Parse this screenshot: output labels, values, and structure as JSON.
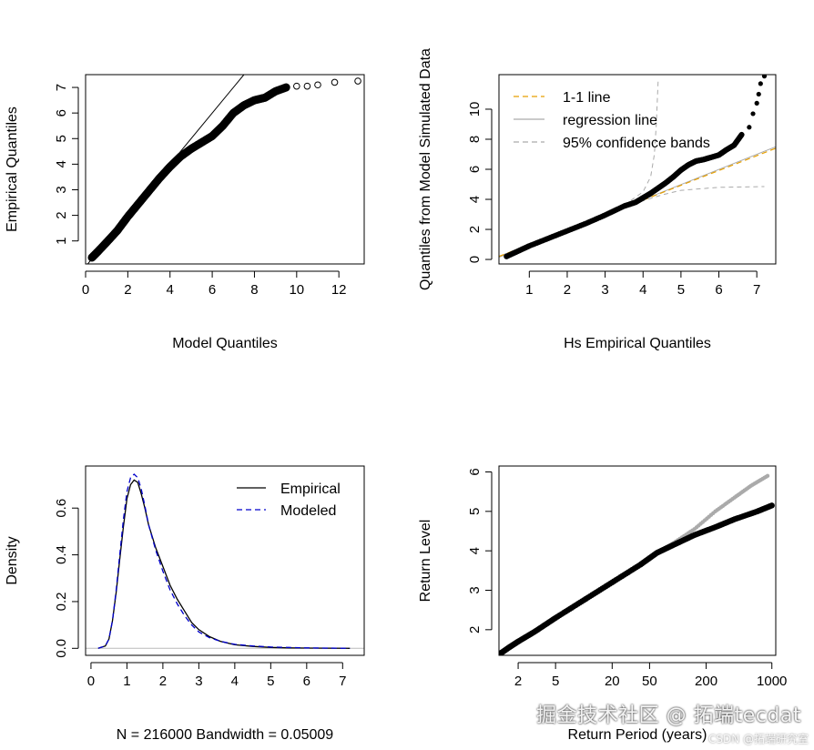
{
  "watermark": {
    "main": "掘金技术社区 @ 拓端tecdat",
    "sub": "CSDN @拓端研究室"
  },
  "chart_data": [
    {
      "type": "scatter",
      "xlabel": "Model Quantiles",
      "ylabel": "Empirical Quantiles",
      "xlim": [
        0,
        13.2
      ],
      "ylim": [
        0.1,
        7.5
      ],
      "xticks": [
        0,
        2,
        4,
        6,
        8,
        10,
        12
      ],
      "yticks": [
        1,
        2,
        3,
        4,
        5,
        6,
        7
      ],
      "grid": false,
      "reference_line": {
        "x": [
          0,
          7.5
        ],
        "y": [
          0,
          7.5
        ]
      },
      "series": [
        {
          "x": [
            0.3,
            0.6,
            1.0,
            1.5,
            2.0,
            2.5,
            3.0,
            3.5,
            4.0,
            4.5,
            5.0,
            5.5,
            6.0,
            6.5,
            7.0,
            7.5,
            8.0,
            8.5,
            9.0,
            9.5,
            10.0,
            10.5,
            11.0,
            11.8,
            12.9
          ],
          "y": [
            0.35,
            0.6,
            0.95,
            1.4,
            1.95,
            2.45,
            2.95,
            3.45,
            3.9,
            4.3,
            4.6,
            4.85,
            5.1,
            5.5,
            6.0,
            6.3,
            6.5,
            6.6,
            6.85,
            7.0,
            7.05,
            7.05,
            7.1,
            7.2,
            7.25
          ]
        }
      ]
    },
    {
      "type": "scatter",
      "xlabel": "Hs Empirical Quantiles",
      "ylabel": "Quantiles from Model Simulated Data",
      "xlim": [
        0.2,
        7.5
      ],
      "ylim": [
        -0.3,
        12.3
      ],
      "xticks": [
        1,
        2,
        3,
        4,
        5,
        6,
        7
      ],
      "yticks": [
        0,
        2,
        4,
        6,
        8,
        10
      ],
      "grid": false,
      "legend": {
        "position": "top-left",
        "entries": [
          {
            "label": "1-1 line",
            "color": "#e69f00",
            "style": "dashed"
          },
          {
            "label": "regression line",
            "color": "#aaaaaa",
            "style": "solid"
          },
          {
            "label": "95% confidence bands",
            "color": "#aaaaaa",
            "style": "dashed"
          }
        ]
      },
      "one_to_one_line": {
        "x": [
          0.2,
          7.5
        ],
        "y": [
          0.2,
          7.4
        ]
      },
      "regression_line": {
        "x": [
          0.2,
          7.5
        ],
        "y": [
          0.15,
          7.5
        ]
      },
      "confidence_bands": {
        "upper": {
          "x": [
            0.3,
            1.0,
            2.0,
            3.0,
            3.5,
            4.0,
            4.2,
            4.3,
            4.35,
            4.4
          ],
          "y": [
            0.3,
            1.0,
            2.0,
            3.1,
            3.6,
            4.5,
            5.5,
            7.0,
            9.0,
            12.0
          ]
        },
        "lower": {
          "x": [
            0.3,
            1.0,
            2.0,
            3.0,
            3.5,
            4.0,
            4.5,
            5.0,
            6.0,
            7.2
          ],
          "y": [
            0.3,
            1.0,
            2.0,
            3.0,
            3.45,
            3.9,
            4.3,
            4.6,
            4.8,
            4.85
          ]
        }
      },
      "series": [
        {
          "x": [
            0.4,
            0.7,
            1.0,
            1.5,
            2.0,
            2.5,
            3.0,
            3.5,
            3.8,
            4.0,
            4.2,
            4.4,
            4.6,
            4.8,
            5.0,
            5.2,
            5.4,
            5.6,
            5.8,
            6.0,
            6.2,
            6.4,
            6.6,
            6.8,
            6.9,
            7.0,
            7.05,
            7.1,
            7.2
          ],
          "y": [
            0.2,
            0.55,
            0.9,
            1.4,
            1.9,
            2.4,
            2.95,
            3.55,
            3.8,
            4.1,
            4.4,
            4.75,
            5.1,
            5.5,
            5.95,
            6.3,
            6.55,
            6.65,
            6.8,
            6.95,
            7.3,
            7.6,
            8.3,
            8.8,
            9.7,
            10.4,
            11.0,
            11.7,
            12.2
          ]
        }
      ]
    },
    {
      "type": "line",
      "xlabel": "N = 216000   Bandwidth = 0.05009",
      "ylabel": "Density",
      "xlim": [
        -0.15,
        7.6
      ],
      "ylim": [
        -0.03,
        0.78
      ],
      "xticks": [
        0,
        1,
        2,
        3,
        4,
        5,
        6,
        7
      ],
      "yticks": [
        0.0,
        0.2,
        0.4,
        0.6
      ],
      "grid": false,
      "legend": {
        "position": "top-right",
        "entries": [
          {
            "label": "Empirical",
            "color": "#000000",
            "style": "solid"
          },
          {
            "label": "Modeled",
            "color": "#0000cc",
            "style": "dashed"
          }
        ]
      },
      "series": [
        {
          "name": "Empirical",
          "x": [
            0.2,
            0.4,
            0.5,
            0.6,
            0.7,
            0.8,
            0.9,
            1.0,
            1.1,
            1.2,
            1.3,
            1.4,
            1.5,
            1.6,
            1.8,
            2.0,
            2.2,
            2.4,
            2.6,
            2.8,
            3.0,
            3.3,
            3.6,
            4.0,
            4.5,
            5.0,
            5.5,
            6.0,
            7.2
          ],
          "y": [
            0.0,
            0.01,
            0.04,
            0.12,
            0.24,
            0.38,
            0.52,
            0.64,
            0.7,
            0.72,
            0.71,
            0.66,
            0.6,
            0.53,
            0.43,
            0.35,
            0.27,
            0.21,
            0.16,
            0.11,
            0.08,
            0.05,
            0.03,
            0.015,
            0.008,
            0.004,
            0.002,
            0.001,
            0.0
          ]
        },
        {
          "name": "Modeled",
          "x": [
            0.2,
            0.4,
            0.5,
            0.6,
            0.7,
            0.8,
            0.9,
            1.0,
            1.1,
            1.2,
            1.3,
            1.4,
            1.5,
            1.6,
            1.8,
            2.0,
            2.2,
            2.4,
            2.6,
            2.8,
            3.0,
            3.3,
            3.6,
            4.0,
            4.5,
            5.0,
            5.5,
            6.0,
            7.2
          ],
          "y": [
            0.0,
            0.01,
            0.04,
            0.12,
            0.25,
            0.4,
            0.55,
            0.67,
            0.73,
            0.745,
            0.73,
            0.68,
            0.61,
            0.53,
            0.42,
            0.33,
            0.25,
            0.19,
            0.14,
            0.1,
            0.07,
            0.045,
            0.03,
            0.017,
            0.01,
            0.006,
            0.004,
            0.002,
            0.0
          ]
        }
      ]
    },
    {
      "type": "scatter",
      "xlabel": "Return Period (years)",
      "ylabel": "Return Level",
      "xscale": "log",
      "xlim": [
        1.25,
        1100
      ],
      "ylim": [
        1.35,
        6.15
      ],
      "xticks": [
        2,
        5,
        20,
        50,
        200,
        1000
      ],
      "yticks": [
        2,
        3,
        4,
        5,
        6
      ],
      "grid": false,
      "series": [
        {
          "name": "",
          "x": [
            1.3,
            1.6,
            2,
            3,
            5,
            10,
            20,
            40,
            60,
            90,
            150,
            250,
            400,
            700,
            1000
          ],
          "y": [
            1.4,
            1.55,
            1.7,
            1.95,
            2.3,
            2.75,
            3.2,
            3.65,
            3.95,
            4.15,
            4.4,
            4.6,
            4.8,
            5.0,
            5.15
          ]
        },
        {
          "name": "",
          "x": [
            60,
            90,
            150,
            250,
            400,
            600,
            900
          ],
          "y": [
            3.95,
            4.2,
            4.55,
            5.0,
            5.35,
            5.65,
            5.9
          ]
        }
      ]
    }
  ]
}
